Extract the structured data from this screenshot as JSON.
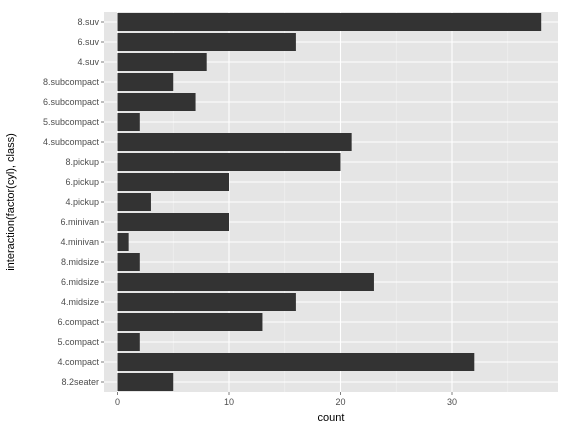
{
  "chart_data": {
    "type": "bar",
    "orientation": "horizontal",
    "xlabel": "count",
    "ylabel": "interaction(factor(cyl), class)",
    "categories": [
      "8.suv",
      "6.suv",
      "4.suv",
      "8.subcompact",
      "6.subcompact",
      "5.subcompact",
      "4.subcompact",
      "8.pickup",
      "6.pickup",
      "4.pickup",
      "6.minivan",
      "4.minivan",
      "8.midsize",
      "6.midsize",
      "4.midsize",
      "6.compact",
      "5.compact",
      "4.compact",
      "8.2seater"
    ],
    "values": [
      38,
      16,
      8,
      5,
      7,
      2,
      21,
      20,
      10,
      3,
      10,
      1,
      2,
      23,
      16,
      13,
      2,
      32,
      5
    ],
    "xlim": [
      0,
      38
    ],
    "xticks": [
      0,
      10,
      20,
      30
    ],
    "grid": true,
    "colors": {
      "panel": "#e5e5e5",
      "grid_major": "#ffffff",
      "grid_minor": "#f2f2f2",
      "bar": "#333333"
    }
  }
}
